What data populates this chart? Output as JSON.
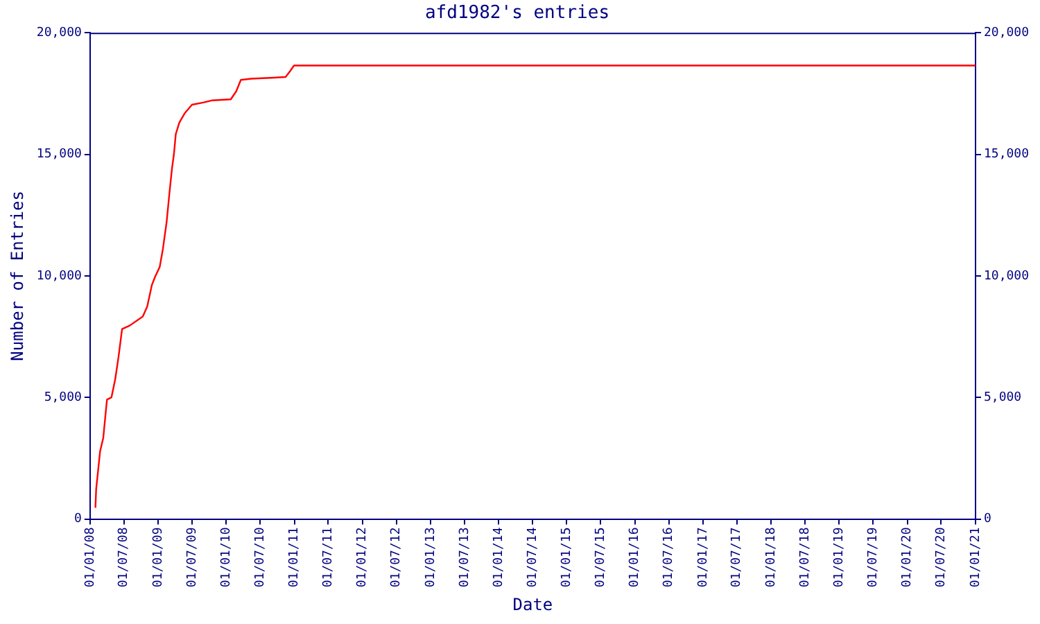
{
  "chart_data": {
    "type": "line",
    "title": "afd1982's entries",
    "xlabel": "Date",
    "ylabel": "Number of Entries",
    "x": [
      "2008-01-30",
      "2008-02-03",
      "2008-02-24",
      "2008-03-12",
      "2008-04-01",
      "2008-04-25",
      "2008-05-15",
      "2008-06-02",
      "2008-06-21",
      "2008-08-02",
      "2008-10-10",
      "2008-11-03",
      "2008-11-28",
      "2008-12-15",
      "2009-01-09",
      "2009-01-26",
      "2009-02-15",
      "2009-03-01",
      "2009-03-16",
      "2009-03-26",
      "2009-04-05",
      "2009-04-24",
      "2009-05-24",
      "2009-07-01",
      "2009-08-30",
      "2009-10-19",
      "2010-01-25",
      "2010-02-23",
      "2010-03-20",
      "2010-05-15",
      "2010-09-15",
      "2010-11-15",
      "2010-12-10",
      "2010-12-30",
      "2021-01-01"
    ],
    "series": [
      {
        "color": "#ff0000",
        "values": [
          460,
          1220,
          2780,
          3330,
          4910,
          5000,
          5740,
          6670,
          7810,
          7960,
          8330,
          8740,
          9630,
          9960,
          10370,
          11110,
          12220,
          13330,
          14440,
          15000,
          15830,
          16300,
          16700,
          17040,
          17130,
          17220,
          17260,
          17590,
          18060,
          18110,
          18150,
          18180,
          18430,
          18650,
          18650
        ]
      }
    ],
    "xlim": [
      "2008-01-01",
      "2021-01-01"
    ],
    "xticks": [
      {
        "value": "2008-01-01",
        "label": "01/01/08"
      },
      {
        "value": "2008-07-01",
        "label": "01/07/08"
      },
      {
        "value": "2009-01-01",
        "label": "01/01/09"
      },
      {
        "value": "2009-07-01",
        "label": "01/07/09"
      },
      {
        "value": "2010-01-01",
        "label": "01/01/10"
      },
      {
        "value": "2010-07-01",
        "label": "01/07/10"
      },
      {
        "value": "2011-01-01",
        "label": "01/01/11"
      },
      {
        "value": "2011-07-01",
        "label": "01/07/11"
      },
      {
        "value": "2012-01-01",
        "label": "01/01/12"
      },
      {
        "value": "2012-07-01",
        "label": "01/07/12"
      },
      {
        "value": "2013-01-01",
        "label": "01/01/13"
      },
      {
        "value": "2013-07-01",
        "label": "01/07/13"
      },
      {
        "value": "2014-01-01",
        "label": "01/01/14"
      },
      {
        "value": "2014-07-01",
        "label": "01/07/14"
      },
      {
        "value": "2015-01-01",
        "label": "01/01/15"
      },
      {
        "value": "2015-07-01",
        "label": "01/07/15"
      },
      {
        "value": "2016-01-01",
        "label": "01/01/16"
      },
      {
        "value": "2016-07-01",
        "label": "01/07/16"
      },
      {
        "value": "2017-01-01",
        "label": "01/01/17"
      },
      {
        "value": "2017-07-01",
        "label": "01/07/17"
      },
      {
        "value": "2018-01-01",
        "label": "01/01/18"
      },
      {
        "value": "2018-07-01",
        "label": "01/07/18"
      },
      {
        "value": "2019-01-01",
        "label": "01/01/19"
      },
      {
        "value": "2019-07-01",
        "label": "01/07/19"
      },
      {
        "value": "2020-01-01",
        "label": "01/01/20"
      },
      {
        "value": "2020-07-01",
        "label": "01/07/20"
      },
      {
        "value": "2021-01-01",
        "label": "01/01/21"
      }
    ],
    "ylim": [
      0,
      20000
    ],
    "yticks": [
      0,
      {
        "value": 5000,
        "label": "5,000"
      },
      {
        "value": 10000,
        "label": "10,000"
      },
      {
        "value": 15000,
        "label": "15,000"
      },
      {
        "value": 20000,
        "label": "20,000"
      }
    ],
    "y2lim": [
      0,
      20000
    ],
    "y2ticks": [
      0,
      {
        "value": 5000,
        "label": "5,000"
      },
      {
        "value": 10000,
        "label": "10,000"
      },
      {
        "value": 15000,
        "label": "15,000"
      },
      {
        "value": 20000,
        "label": "20,000"
      }
    ],
    "grid": false,
    "legend": false,
    "marker": "none",
    "line_style": "solid"
  }
}
